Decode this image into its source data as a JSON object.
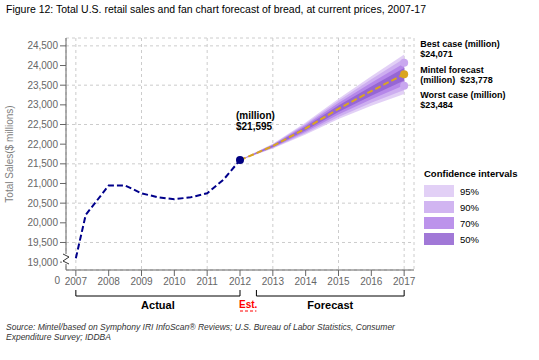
{
  "chart_data": {
    "type": "line",
    "title": "Figure 12: Total U.S. retail sales and fan chart forecast of bread, at current prices, 2007-17",
    "ylabel": "Total Sales($ millions)",
    "source": "Source: Mintel/based on Symphony IRI InfoScan® Reviews; U.S. Bureau of Labor Statistics, Consumer\nExpenditure Survey; IDDBA",
    "xlim": [
      2006.7,
      2017.3
    ],
    "xticks": [
      2007,
      2008,
      2009,
      2010,
      2011,
      2012,
      2013,
      2014,
      2015,
      2016,
      2017
    ],
    "ylim": [
      18800,
      24700
    ],
    "yticks": [
      {
        "value": 19000,
        "label": "19,000"
      },
      {
        "value": 19500,
        "label": "19,500"
      },
      {
        "value": 20000,
        "label": "20,000"
      },
      {
        "value": 20500,
        "label": "20,500"
      },
      {
        "value": 21000,
        "label": "21,000"
      },
      {
        "value": 21500,
        "label": "21,500"
      },
      {
        "value": 22000,
        "label": "22,000"
      },
      {
        "value": 22500,
        "label": "22,500"
      },
      {
        "value": 23000,
        "label": "23,000"
      },
      {
        "value": 23500,
        "label": "23,500"
      },
      {
        "value": 24000,
        "label": "24,000"
      },
      {
        "value": 24500,
        "label": "24,500"
      }
    ],
    "y_break_label": "0",
    "grid": true,
    "legend": "right",
    "legend_title": "Confidence intervals",
    "series": [
      {
        "type": "band",
        "name": "95%",
        "color": "#ddc8f5",
        "x": [
          2012,
          2013,
          2014,
          2015,
          2016,
          2017
        ],
        "lower": [
          21595,
          21888.3,
          22248.07,
          22642.62,
          22975.9,
          23278
        ],
        "upper": [
          21595,
          22011.7,
          22551.93,
          23157.38,
          23724.1,
          24278
        ]
      },
      {
        "type": "band",
        "name": "90%",
        "color": "#c9a8ef",
        "x": [
          2012,
          2013,
          2014,
          2015,
          2016,
          2017
        ],
        "lower": [
          21595,
          21900.64,
          22278.45,
          22694.1,
          23050.72,
          23378
        ],
        "upper": [
          21595,
          21999.36,
          22521.55,
          23105.9,
          23649.28,
          24178
        ]
      },
      {
        "type": "band",
        "name": "70%",
        "color": "#b080e8",
        "x": [
          2012,
          2013,
          2014,
          2015,
          2016,
          2017
        ],
        "lower": [
          21595,
          21915.45,
          22314.92,
          22755.87,
          23140.5,
          23498
        ],
        "upper": [
          21595,
          21984.55,
          22485.08,
          23044.13,
          23559.5,
          24058
        ]
      },
      {
        "type": "band",
        "name": "50%",
        "color": "#9060d0",
        "x": [
          2012,
          2013,
          2014,
          2015,
          2016,
          2017
        ],
        "lower": [
          21595,
          21930.25,
          22351.38,
          22817.64,
          23230.29,
          23618
        ],
        "upper": [
          21595,
          21969.75,
          22448.62,
          22982.36,
          23469.71,
          23938
        ]
      },
      {
        "type": "line",
        "color": "#00008B",
        "line_style": "dashed",
        "x": [
          2007,
          2007.3,
          2008,
          2008.5,
          2009,
          2009.5,
          2010,
          2010.5,
          2011,
          2011.5,
          2012
        ],
        "values": [
          19100,
          20200,
          20950,
          20950,
          20750,
          20650,
          20600,
          20650,
          20750,
          21100,
          21595
        ]
      },
      {
        "type": "line",
        "color": "#DAA520",
        "line_style": "dashed",
        "x": [
          2012,
          2013,
          2014,
          2015,
          2016,
          2017
        ],
        "values": [
          21595,
          21950,
          22400,
          22900,
          23350,
          23778
        ]
      },
      {
        "type": "scatter",
        "x": [
          2012,
          2017,
          2017,
          2017
        ],
        "values": [
          21595,
          23778,
          24071,
          23484
        ],
        "colors": [
          "#000080",
          "#DAA520",
          "#c9a8ef",
          "#c9a8ef"
        ]
      }
    ],
    "annotations": [
      {
        "text": "(million)\n$21,595",
        "x": 2012,
        "y": 21595
      },
      {
        "text": "Best case (million)\n$24,071",
        "x": 2017,
        "y": 24071
      },
      {
        "text": "Mintel forecast\n(million)  $23,778",
        "x": 2017,
        "y": 23778
      },
      {
        "text": "Worst case (million)\n$23,484",
        "x": 2017,
        "y": 23484
      }
    ],
    "x_groups": [
      {
        "label": "Actual",
        "from": 2007,
        "to": 2012,
        "line_style": "solid"
      },
      {
        "label": "Est.",
        "from": 2012,
        "to": 2012.5,
        "line_style": "dashed",
        "color": "#ff0000"
      },
      {
        "label": "Forecast",
        "from": 2012.5,
        "to": 2017,
        "line_style": "solid"
      }
    ]
  }
}
